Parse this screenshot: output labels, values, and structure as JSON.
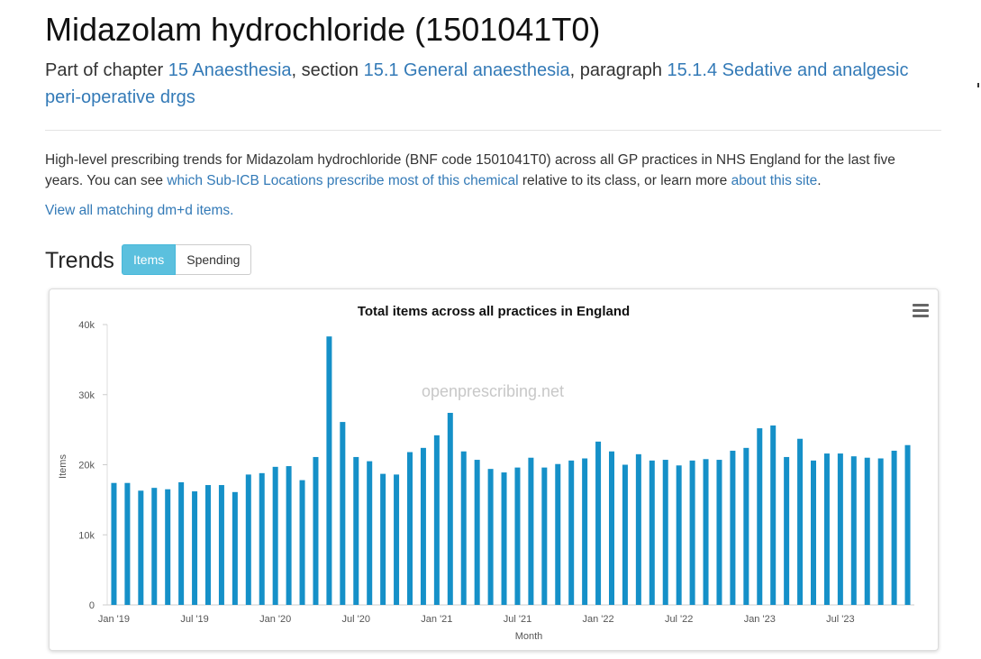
{
  "header": {
    "title": "Midazolam hydrochloride (1501041T0)",
    "sub_prefix": "Part of chapter",
    "chapter_link": "15 Anaesthesia",
    "sub_section_word": ", section",
    "section_link": "15.1 General anaesthesia",
    "sub_paragraph_word": ", paragraph",
    "paragraph_link": "15.1.4 Sedative and analgesic peri-operative drgs"
  },
  "intro": {
    "text_before": "High-level prescribing trends for Midazolam hydrochloride (BNF code 1501041T0) across all GP practices in NHS England for the last five years. You can see",
    "link_subicb": "which Sub-ICB Locations prescribe most of this chemical",
    "text_middle": "relative to its class, or learn more",
    "link_about": "about this site",
    "text_end": ".",
    "dmd_link": "View all matching dm+d items."
  },
  "trends": {
    "heading": "Trends",
    "toggle_items": "Items",
    "toggle_spending": "Spending",
    "active_toggle": "Items"
  },
  "chart_data": {
    "type": "bar",
    "title": "Total items across all practices in England",
    "watermark": "openprescribing.net",
    "xlabel": "Month",
    "ylabel": "Items",
    "ylim": [
      0,
      40000
    ],
    "y_ticks": [
      0,
      10000,
      20000,
      30000,
      40000
    ],
    "y_tick_labels": [
      "0",
      "10k",
      "20k",
      "30k",
      "40k"
    ],
    "x_tick_labels": [
      "Jan '19",
      "Jul '19",
      "Jan '20",
      "Jul '20",
      "Jan '21",
      "Jul '21",
      "Jan '22",
      "Jul '22",
      "Jan '23",
      "Jul '23"
    ],
    "first_month": "2019-01",
    "bar_color": "#1590c8",
    "values": [
      17400,
      17400,
      16300,
      16700,
      16500,
      17500,
      16200,
      17100,
      17100,
      16100,
      18600,
      18800,
      19700,
      19800,
      17800,
      21100,
      38300,
      26100,
      21100,
      20500,
      18700,
      18600,
      21800,
      22400,
      24200,
      27400,
      21900,
      20700,
      19400,
      18900,
      19600,
      21000,
      19600,
      20100,
      20600,
      20900,
      23300,
      21900,
      20000,
      21500,
      20600,
      20700,
      19900,
      20600,
      20800,
      20700,
      22000,
      22400,
      25200,
      25600,
      21100,
      23700,
      20600,
      21600,
      21600,
      21200,
      21000,
      20900,
      22000,
      22800
    ],
    "grid": false
  }
}
